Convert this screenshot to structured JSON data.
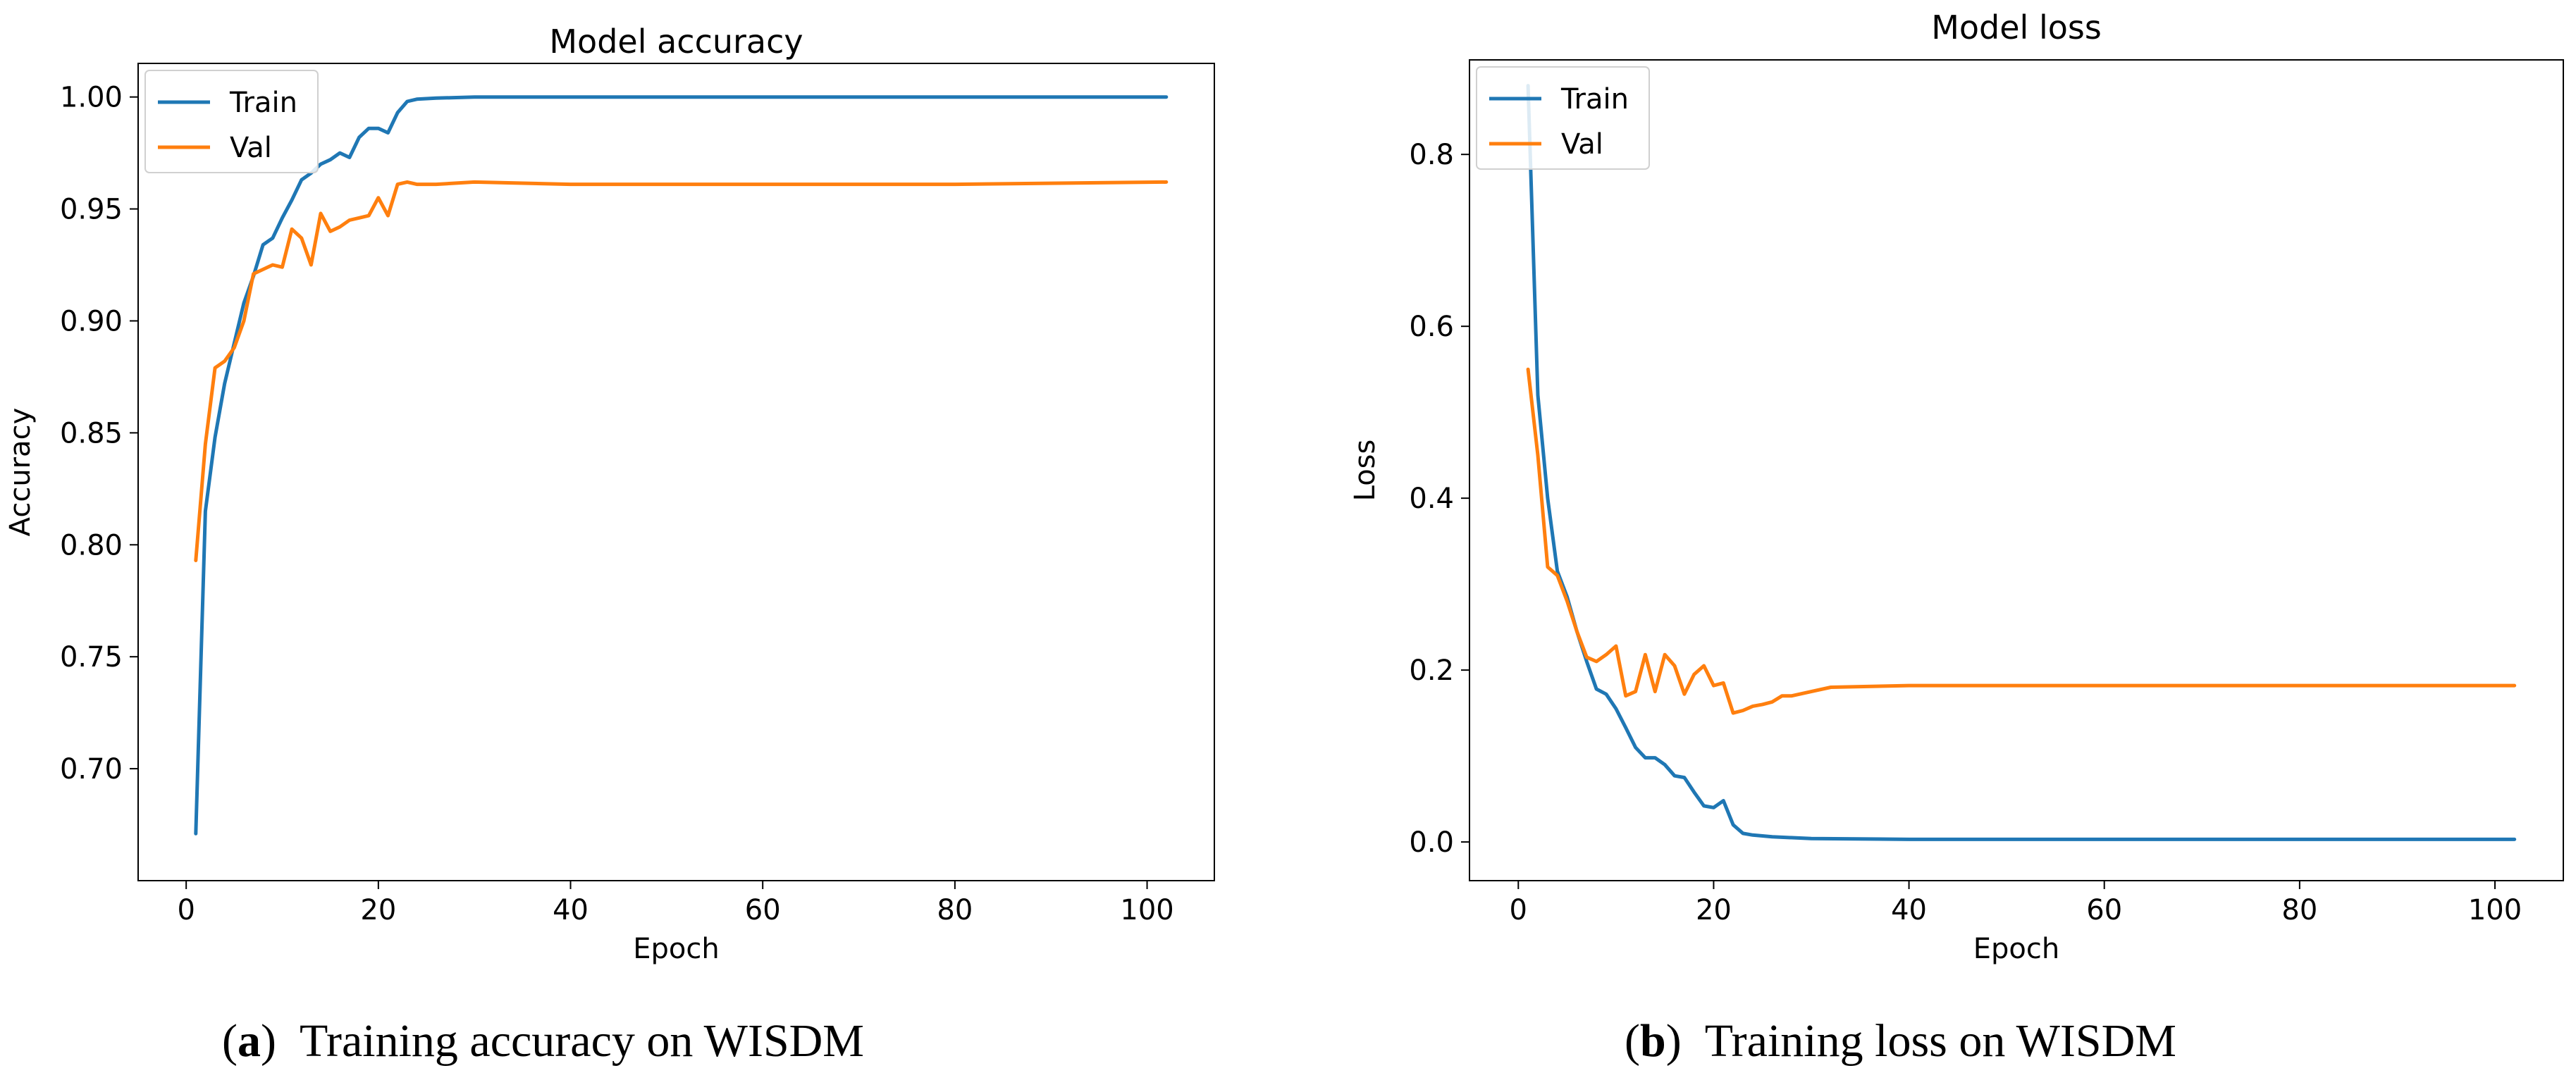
{
  "chart_data": [
    {
      "type": "line",
      "title": "Model accuracy",
      "xlabel": "Epoch",
      "ylabel": "Accuracy",
      "xlim": [
        -5,
        107
      ],
      "ylim": [
        0.65,
        1.015
      ],
      "xticks": [
        0,
        20,
        40,
        60,
        80,
        100
      ],
      "xtick_labels": [
        "0",
        "20",
        "40",
        "60",
        "80",
        "100"
      ],
      "yticks": [
        0.7,
        0.75,
        0.8,
        0.85,
        0.9,
        0.95,
        1.0
      ],
      "ytick_labels": [
        "0.70",
        "0.75",
        "0.80",
        "0.85",
        "0.90",
        "0.95",
        "1.00"
      ],
      "legend_position": "top-left",
      "series": [
        {
          "name": "Train",
          "color": "#1f77b4",
          "x": [
            1,
            2,
            3,
            4,
            5,
            6,
            7,
            8,
            9,
            10,
            11,
            12,
            13,
            14,
            15,
            16,
            17,
            18,
            19,
            20,
            21,
            22,
            23,
            24,
            26,
            30,
            40,
            60,
            80,
            102
          ],
          "y": [
            0.671,
            0.815,
            0.848,
            0.872,
            0.89,
            0.908,
            0.92,
            0.934,
            0.937,
            0.946,
            0.954,
            0.963,
            0.966,
            0.97,
            0.972,
            0.975,
            0.973,
            0.982,
            0.986,
            0.986,
            0.984,
            0.993,
            0.998,
            0.999,
            0.9995,
            1.0,
            1.0,
            1.0,
            1.0,
            1.0
          ]
        },
        {
          "name": "Val",
          "color": "#ff7f0e",
          "x": [
            1,
            2,
            3,
            4,
            5,
            6,
            7,
            8,
            9,
            10,
            11,
            12,
            13,
            14,
            15,
            16,
            17,
            18,
            19,
            20,
            21,
            22,
            23,
            24,
            25,
            26,
            30,
            40,
            60,
            80,
            102
          ],
          "y": [
            0.793,
            0.845,
            0.879,
            0.882,
            0.888,
            0.9,
            0.921,
            0.923,
            0.925,
            0.924,
            0.941,
            0.937,
            0.925,
            0.948,
            0.94,
            0.942,
            0.945,
            0.946,
            0.947,
            0.955,
            0.947,
            0.961,
            0.962,
            0.961,
            0.961,
            0.961,
            0.962,
            0.961,
            0.961,
            0.961,
            0.962
          ]
        }
      ]
    },
    {
      "type": "line",
      "title": "Model loss",
      "xlabel": "Epoch",
      "ylabel": "Loss",
      "xlim": [
        -5,
        107
      ],
      "ylim": [
        -0.045,
        0.91
      ],
      "xticks": [
        0,
        20,
        40,
        60,
        80,
        100
      ],
      "xtick_labels": [
        "0",
        "20",
        "40",
        "60",
        "80",
        "100"
      ],
      "yticks": [
        0.0,
        0.2,
        0.4,
        0.6,
        0.8
      ],
      "ytick_labels": [
        "0.0",
        "0.2",
        "0.4",
        "0.6",
        "0.8"
      ],
      "legend_position": "top-left",
      "series": [
        {
          "name": "Train",
          "color": "#1f77b4",
          "x": [
            1,
            2,
            3,
            4,
            5,
            6,
            7,
            8,
            9,
            10,
            11,
            12,
            13,
            14,
            15,
            16,
            17,
            18,
            19,
            20,
            21,
            22,
            23,
            24,
            26,
            30,
            40,
            60,
            80,
            102
          ],
          "y": [
            0.88,
            0.52,
            0.4,
            0.315,
            0.285,
            0.245,
            0.21,
            0.178,
            0.172,
            0.155,
            0.133,
            0.11,
            0.098,
            0.098,
            0.09,
            0.077,
            0.075,
            0.058,
            0.042,
            0.04,
            0.048,
            0.02,
            0.01,
            0.008,
            0.006,
            0.004,
            0.003,
            0.003,
            0.003,
            0.003
          ]
        },
        {
          "name": "Val",
          "color": "#ff7f0e",
          "x": [
            1,
            2,
            3,
            4,
            5,
            6,
            7,
            8,
            9,
            10,
            11,
            12,
            13,
            14,
            15,
            16,
            17,
            18,
            19,
            20,
            21,
            22,
            23,
            24,
            25,
            26,
            27,
            28,
            30,
            32,
            40,
            60,
            80,
            102
          ],
          "y": [
            0.55,
            0.45,
            0.32,
            0.31,
            0.28,
            0.245,
            0.215,
            0.21,
            0.218,
            0.228,
            0.17,
            0.175,
            0.218,
            0.175,
            0.218,
            0.205,
            0.172,
            0.195,
            0.205,
            0.182,
            0.185,
            0.15,
            0.153,
            0.158,
            0.16,
            0.163,
            0.17,
            0.17,
            0.175,
            0.18,
            0.182,
            0.182,
            0.182,
            0.182
          ]
        }
      ]
    }
  ],
  "captions": {
    "a_label": "a",
    "a_text": "Training accuracy on WISDM",
    "b_label": "b",
    "b_text": "Training loss on WISDM"
  }
}
